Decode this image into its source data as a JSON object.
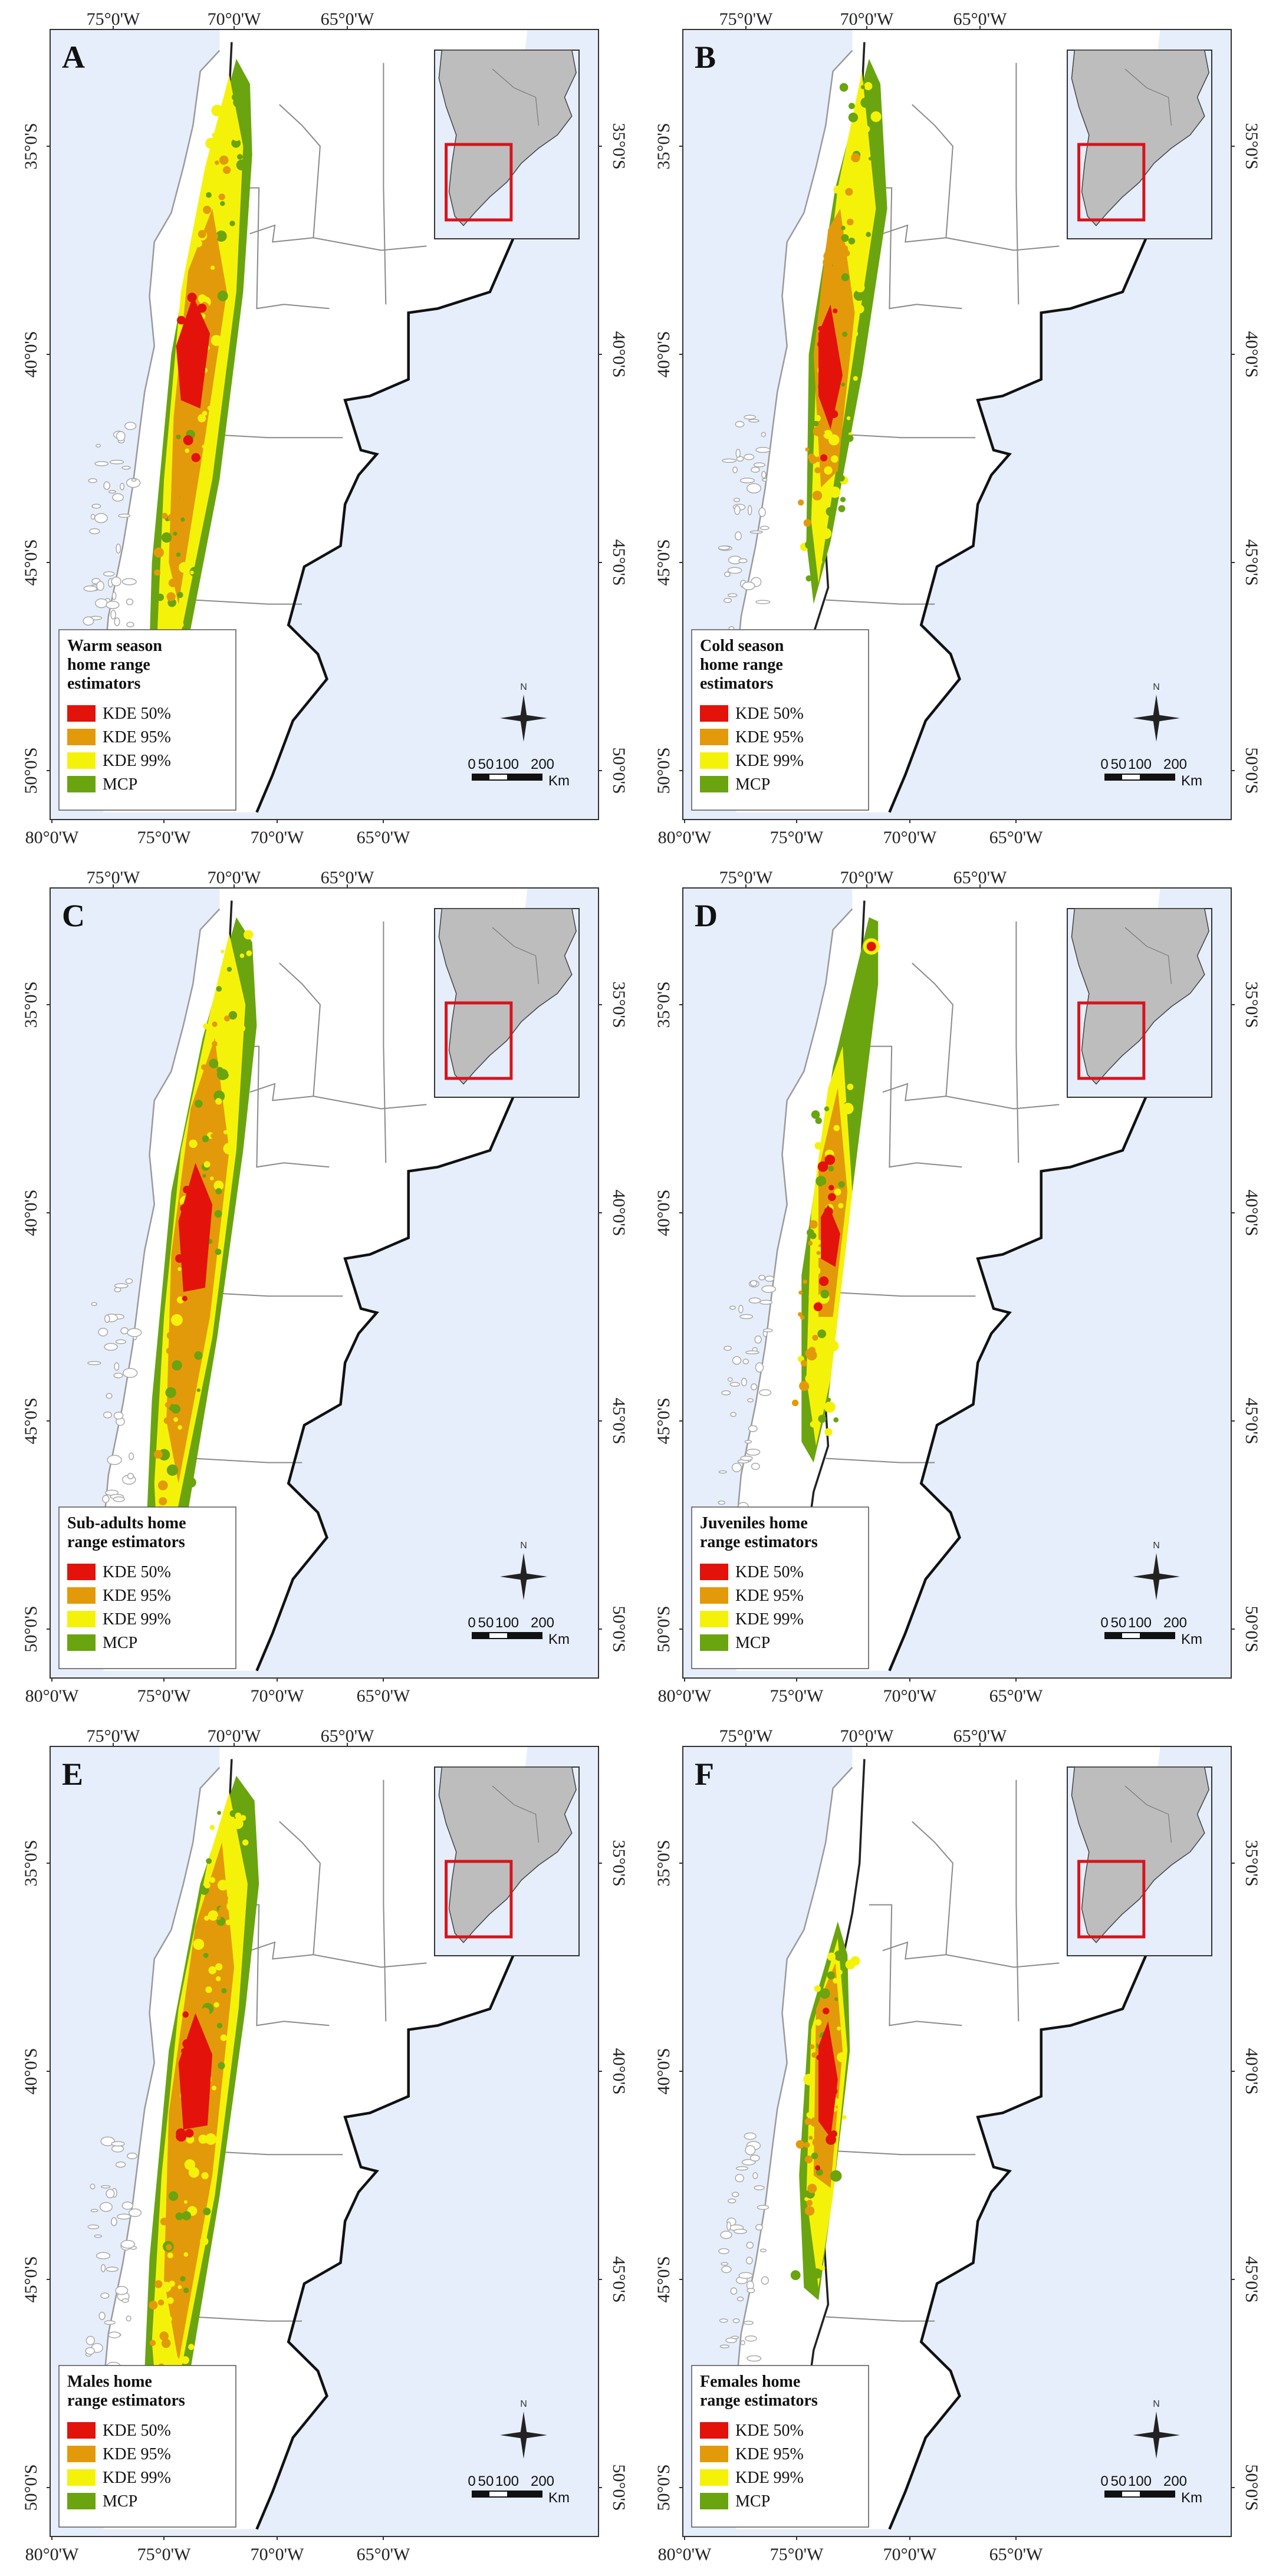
{
  "figure": {
    "axes": {
      "x_top": [
        "75°0'W",
        "70°0'W",
        "65°0'W"
      ],
      "x_bottom": [
        "80°0'W",
        "75°0'W",
        "70°0'W",
        "65°0'W"
      ],
      "y": [
        "35°0'S",
        "40°0'S",
        "45°0'S",
        "50°0'S"
      ]
    },
    "legend_items": [
      "KDE 50%",
      "KDE 95%",
      "KDE 99%",
      "MCP"
    ],
    "legend_colors": {
      "KDE 50%": "#e3120b",
      "KDE 95%": "#e39a0a",
      "KDE 99%": "#f5f20a",
      "MCP": "#6aa40f"
    },
    "scale_bar": {
      "labels": [
        "0",
        "50",
        "100",
        "200"
      ],
      "unit": "Km"
    },
    "north_arrow": "N",
    "colors": {
      "ocean": "#e6eefb",
      "land": "#ffffff",
      "border": "#8a8a8a",
      "coast": "#111111",
      "inset_land": "#bdbdbd",
      "inset_box": "#d8131b"
    },
    "panels": [
      {
        "letter": "A",
        "legend_title": [
          "Warm season",
          "home range",
          "estimators"
        ]
      },
      {
        "letter": "B",
        "legend_title": [
          "Cold season",
          "home range",
          "estimators"
        ]
      },
      {
        "letter": "C",
        "legend_title": [
          "Sub-adults home",
          "range estimators"
        ]
      },
      {
        "letter": "D",
        "legend_title": [
          "Juveniles home",
          "range estimators"
        ]
      },
      {
        "letter": "E",
        "legend_title": [
          "Males home",
          "range estimators"
        ]
      },
      {
        "letter": "F",
        "legend_title": [
          "Females home",
          "range estimators"
        ]
      }
    ]
  }
}
